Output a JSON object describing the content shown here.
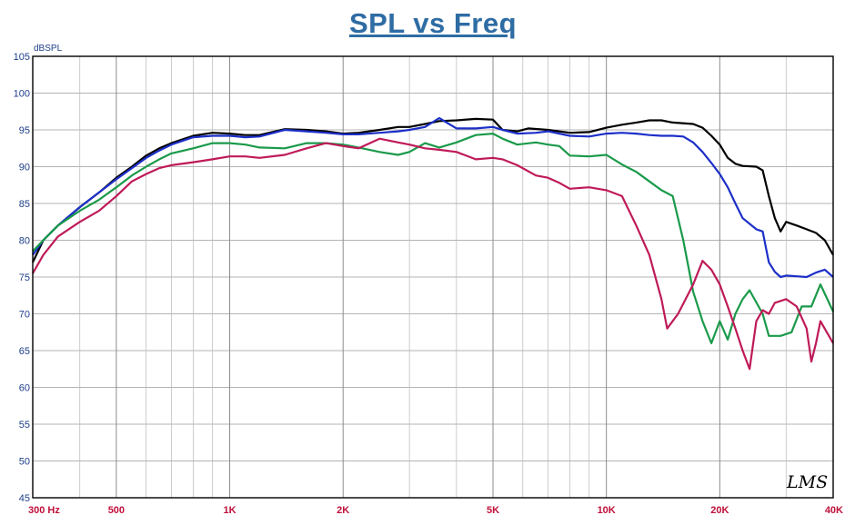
{
  "chart_data": {
    "type": "line",
    "title": "SPL vs Freq",
    "ylabel": "dBSPL",
    "xlabel": "",
    "x_scale": "log",
    "xlim": [
      300,
      40000
    ],
    "ylim": [
      45,
      105
    ],
    "y_ticks": [
      45,
      50,
      55,
      60,
      65,
      70,
      75,
      80,
      85,
      90,
      95,
      100,
      105
    ],
    "x_ticks": [
      {
        "value": 300,
        "label": "300  Hz"
      },
      {
        "value": 500,
        "label": "500"
      },
      {
        "value": 1000,
        "label": "1K"
      },
      {
        "value": 2000,
        "label": "2K"
      },
      {
        "value": 5000,
        "label": "5K"
      },
      {
        "value": 10000,
        "label": "10K"
      },
      {
        "value": 20000,
        "label": "20K"
      },
      {
        "value": 40000,
        "label": "40K"
      }
    ],
    "grid": true,
    "watermark": "LMS",
    "series": [
      {
        "color": "#000000",
        "points": [
          [
            300,
            77
          ],
          [
            320,
            80
          ],
          [
            350,
            82
          ],
          [
            400,
            84.5
          ],
          [
            450,
            86.5
          ],
          [
            500,
            88.5
          ],
          [
            550,
            90
          ],
          [
            600,
            91.5
          ],
          [
            650,
            92.5
          ],
          [
            700,
            93.2
          ],
          [
            800,
            94.2
          ],
          [
            900,
            94.6
          ],
          [
            1000,
            94.5
          ],
          [
            1100,
            94.3
          ],
          [
            1200,
            94.3
          ],
          [
            1400,
            95.1
          ],
          [
            1600,
            95
          ],
          [
            1800,
            94.8
          ],
          [
            2000,
            94.5
          ],
          [
            2200,
            94.6
          ],
          [
            2500,
            95
          ],
          [
            2800,
            95.4
          ],
          [
            3000,
            95.4
          ],
          [
            3300,
            95.8
          ],
          [
            3600,
            96.2
          ],
          [
            4000,
            96.3
          ],
          [
            4500,
            96.5
          ],
          [
            5000,
            96.4
          ],
          [
            5300,
            95
          ],
          [
            5800,
            94.8
          ],
          [
            6200,
            95.2
          ],
          [
            7000,
            95
          ],
          [
            8000,
            94.6
          ],
          [
            9000,
            94.7
          ],
          [
            10000,
            95.3
          ],
          [
            11000,
            95.7
          ],
          [
            12000,
            96
          ],
          [
            13000,
            96.3
          ],
          [
            14000,
            96.3
          ],
          [
            15000,
            96
          ],
          [
            17000,
            95.8
          ],
          [
            18000,
            95.3
          ],
          [
            19000,
            94.2
          ],
          [
            20000,
            93
          ],
          [
            21000,
            91.2
          ],
          [
            22000,
            90.4
          ],
          [
            23000,
            90.1
          ],
          [
            25000,
            90
          ],
          [
            26000,
            89.5
          ],
          [
            27000,
            86
          ],
          [
            28000,
            83
          ],
          [
            29000,
            81.2
          ],
          [
            30000,
            82.5
          ],
          [
            32000,
            82
          ],
          [
            34000,
            81.5
          ],
          [
            36000,
            81
          ],
          [
            38000,
            80
          ],
          [
            40000,
            78
          ]
        ]
      },
      {
        "color": "#1c2fc8",
        "points": [
          [
            300,
            78
          ],
          [
            320,
            80
          ],
          [
            350,
            82
          ],
          [
            400,
            84.5
          ],
          [
            450,
            86.5
          ],
          [
            500,
            88.3
          ],
          [
            550,
            89.8
          ],
          [
            600,
            91.2
          ],
          [
            650,
            92.2
          ],
          [
            700,
            93
          ],
          [
            800,
            94
          ],
          [
            900,
            94.2
          ],
          [
            1000,
            94.2
          ],
          [
            1100,
            94
          ],
          [
            1200,
            94.1
          ],
          [
            1400,
            95
          ],
          [
            1600,
            94.8
          ],
          [
            1800,
            94.6
          ],
          [
            2000,
            94.4
          ],
          [
            2200,
            94.4
          ],
          [
            2500,
            94.6
          ],
          [
            2800,
            94.8
          ],
          [
            3000,
            95
          ],
          [
            3300,
            95.4
          ],
          [
            3600,
            96.6
          ],
          [
            4000,
            95.2
          ],
          [
            4500,
            95.2
          ],
          [
            5000,
            95.4
          ],
          [
            5300,
            95
          ],
          [
            5800,
            94.5
          ],
          [
            6500,
            94.6
          ],
          [
            7000,
            94.8
          ],
          [
            8000,
            94.2
          ],
          [
            9000,
            94.1
          ],
          [
            10000,
            94.5
          ],
          [
            11000,
            94.6
          ],
          [
            12000,
            94.5
          ],
          [
            13000,
            94.3
          ],
          [
            14000,
            94.2
          ],
          [
            15000,
            94.2
          ],
          [
            16000,
            94.1
          ],
          [
            17000,
            93.3
          ],
          [
            18000,
            92
          ],
          [
            19000,
            90.5
          ],
          [
            20000,
            89
          ],
          [
            21000,
            87.2
          ],
          [
            22000,
            85
          ],
          [
            23000,
            83
          ],
          [
            25000,
            81.5
          ],
          [
            26000,
            81.2
          ],
          [
            27000,
            77
          ],
          [
            28000,
            75.7
          ],
          [
            29000,
            75
          ],
          [
            30000,
            75.2
          ],
          [
            32000,
            75.1
          ],
          [
            34000,
            75
          ],
          [
            36000,
            75.6
          ],
          [
            38000,
            76
          ],
          [
            40000,
            75
          ]
        ]
      },
      {
        "color": "#1a9a4a",
        "points": [
          [
            300,
            78.5
          ],
          [
            320,
            80
          ],
          [
            350,
            82
          ],
          [
            400,
            84
          ],
          [
            450,
            85.5
          ],
          [
            500,
            87.2
          ],
          [
            550,
            88.8
          ],
          [
            600,
            90
          ],
          [
            650,
            91
          ],
          [
            700,
            91.8
          ],
          [
            800,
            92.5
          ],
          [
            900,
            93.2
          ],
          [
            1000,
            93.2
          ],
          [
            1100,
            93
          ],
          [
            1200,
            92.6
          ],
          [
            1400,
            92.5
          ],
          [
            1600,
            93.2
          ],
          [
            1800,
            93.2
          ],
          [
            2000,
            93
          ],
          [
            2200,
            92.6
          ],
          [
            2500,
            92
          ],
          [
            2800,
            91.6
          ],
          [
            3000,
            92
          ],
          [
            3300,
            93.2
          ],
          [
            3600,
            92.6
          ],
          [
            4000,
            93.3
          ],
          [
            4500,
            94.3
          ],
          [
            5000,
            94.5
          ],
          [
            5300,
            93.8
          ],
          [
            5800,
            93
          ],
          [
            6500,
            93.3
          ],
          [
            7000,
            93
          ],
          [
            7500,
            92.8
          ],
          [
            8000,
            91.5
          ],
          [
            9000,
            91.4
          ],
          [
            10000,
            91.6
          ],
          [
            11000,
            90.3
          ],
          [
            12000,
            89.3
          ],
          [
            13000,
            88
          ],
          [
            14000,
            86.8
          ],
          [
            15000,
            86
          ],
          [
            16000,
            80
          ],
          [
            17000,
            73
          ],
          [
            18000,
            69
          ],
          [
            19000,
            66
          ],
          [
            20000,
            69
          ],
          [
            21000,
            66.5
          ],
          [
            22000,
            70
          ],
          [
            23000,
            72
          ],
          [
            24000,
            73.2
          ],
          [
            26000,
            70
          ],
          [
            27000,
            67
          ],
          [
            29000,
            67
          ],
          [
            31000,
            67.5
          ],
          [
            33000,
            71
          ],
          [
            35000,
            71
          ],
          [
            37000,
            74
          ],
          [
            40000,
            70.3
          ]
        ]
      },
      {
        "color": "#bf1a58",
        "points": [
          [
            300,
            75.5
          ],
          [
            320,
            78
          ],
          [
            350,
            80.5
          ],
          [
            400,
            82.5
          ],
          [
            450,
            84
          ],
          [
            500,
            86
          ],
          [
            550,
            88
          ],
          [
            600,
            89
          ],
          [
            650,
            89.8
          ],
          [
            700,
            90.2
          ],
          [
            800,
            90.6
          ],
          [
            900,
            91
          ],
          [
            1000,
            91.4
          ],
          [
            1100,
            91.4
          ],
          [
            1200,
            91.2
          ],
          [
            1400,
            91.6
          ],
          [
            1600,
            92.5
          ],
          [
            1800,
            93.2
          ],
          [
            2000,
            92.8
          ],
          [
            2200,
            92.5
          ],
          [
            2500,
            93.8
          ],
          [
            2800,
            93.3
          ],
          [
            3000,
            93
          ],
          [
            3300,
            92.5
          ],
          [
            3600,
            92.3
          ],
          [
            4000,
            92
          ],
          [
            4500,
            91
          ],
          [
            5000,
            91.2
          ],
          [
            5300,
            91
          ],
          [
            5800,
            90.2
          ],
          [
            6500,
            88.8
          ],
          [
            7000,
            88.5
          ],
          [
            7500,
            87.8
          ],
          [
            8000,
            87
          ],
          [
            9000,
            87.2
          ],
          [
            10000,
            86.8
          ],
          [
            11000,
            86
          ],
          [
            12000,
            82
          ],
          [
            13000,
            78
          ],
          [
            14000,
            72
          ],
          [
            14500,
            68
          ],
          [
            15500,
            70
          ],
          [
            17000,
            74
          ],
          [
            18000,
            77.2
          ],
          [
            19000,
            76
          ],
          [
            20000,
            74
          ],
          [
            21000,
            71
          ],
          [
            22000,
            68
          ],
          [
            23000,
            65
          ],
          [
            24000,
            62.5
          ],
          [
            25000,
            69
          ],
          [
            26000,
            70.5
          ],
          [
            27000,
            70
          ],
          [
            28000,
            71.5
          ],
          [
            30000,
            72
          ],
          [
            32000,
            71
          ],
          [
            34000,
            68
          ],
          [
            35000,
            63.5
          ],
          [
            36000,
            66
          ],
          [
            37000,
            69
          ],
          [
            40000,
            66
          ]
        ]
      }
    ]
  }
}
